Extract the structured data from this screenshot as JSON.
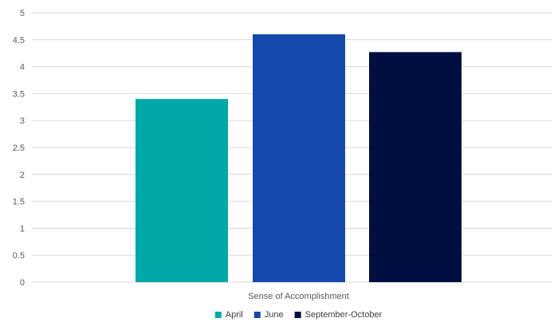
{
  "chart_data": {
    "type": "bar",
    "categories": [
      "Sense of Accomplishment"
    ],
    "series": [
      {
        "name": "April",
        "values": [
          3.4
        ],
        "color": "#00A9A6"
      },
      {
        "name": "June",
        "values": [
          4.6
        ],
        "color": "#1449AA"
      },
      {
        "name": "September-October",
        "values": [
          4.27
        ],
        "color": "#010E40"
      }
    ],
    "ylim": [
      0,
      5
    ],
    "yticks": [
      0,
      0.5,
      1,
      1.5,
      2,
      2.5,
      3,
      3.5,
      4,
      4.5,
      5
    ],
    "ytick_labels": [
      "0",
      "0.5",
      "1",
      "1.5",
      "2",
      "2.5",
      "3",
      "3.5",
      "4",
      "4.5",
      "5"
    ],
    "grid": true,
    "legend_position": "bottom",
    "gridline_color": "#D9D9D9"
  }
}
